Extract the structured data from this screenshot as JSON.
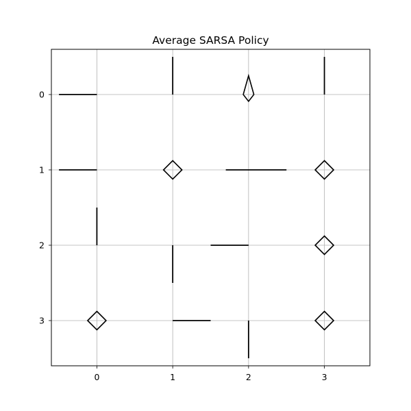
{
  "chart_data": {
    "type": "scatter",
    "title": "Average SARSA Policy",
    "xlabel": "",
    "ylabel": "",
    "x_ticks": [
      "0",
      "1",
      "2",
      "3"
    ],
    "y_ticks": [
      "0",
      "1",
      "2",
      "3"
    ],
    "xlim": [
      -0.6,
      3.6
    ],
    "ylim": [
      3.6,
      -0.6
    ],
    "y_axis_inverted": true,
    "grid": true,
    "legend": "none",
    "arrow_color": "#000000",
    "grid_color": "#b0b0b0",
    "cells": [
      {
        "row": 0,
        "col": 0,
        "dx": -0.5,
        "dy": 0.0,
        "glyph": "line"
      },
      {
        "row": 0,
        "col": 1,
        "dx": 0.0,
        "dy": -0.5,
        "glyph": "line"
      },
      {
        "row": 0,
        "col": 2,
        "dx": 0.0,
        "dy": -0.25,
        "glyph": "kite"
      },
      {
        "row": 0,
        "col": 3,
        "dx": 0.0,
        "dy": -0.5,
        "glyph": "line"
      },
      {
        "row": 1,
        "col": 0,
        "dx": -0.5,
        "dy": 0.0,
        "glyph": "line"
      },
      {
        "row": 1,
        "col": 1,
        "dx": 0.0,
        "dy": 0.0,
        "glyph": "diamond"
      },
      {
        "row": 1,
        "col": 2,
        "dx": 0.5,
        "dy": 0.0,
        "x0": 1.7,
        "glyph": "line"
      },
      {
        "row": 1,
        "col": 3,
        "dx": 0.0,
        "dy": 0.0,
        "glyph": "diamond"
      },
      {
        "row": 2,
        "col": 0,
        "dx": 0.0,
        "dy": -0.5,
        "glyph": "line"
      },
      {
        "row": 2,
        "col": 1,
        "dx": 0.0,
        "dy": 0.5,
        "glyph": "line"
      },
      {
        "row": 2,
        "col": 2,
        "dx": -0.5,
        "dy": 0.0,
        "glyph": "line"
      },
      {
        "row": 2,
        "col": 3,
        "dx": 0.0,
        "dy": 0.0,
        "glyph": "diamond"
      },
      {
        "row": 3,
        "col": 0,
        "dx": 0.0,
        "dy": 0.0,
        "glyph": "diamond"
      },
      {
        "row": 3,
        "col": 1,
        "dx": 0.5,
        "dy": 0.0,
        "glyph": "line"
      },
      {
        "row": 3,
        "col": 2,
        "dx": 0.0,
        "dy": 0.5,
        "glyph": "line"
      },
      {
        "row": 3,
        "col": 3,
        "dx": 0.0,
        "dy": 0.0,
        "glyph": "diamond"
      }
    ]
  }
}
